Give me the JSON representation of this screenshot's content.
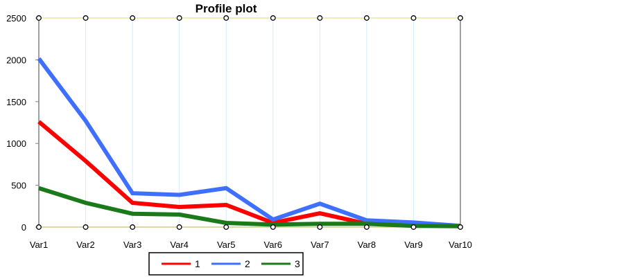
{
  "chart_data": {
    "type": "line",
    "title": "Profile plot",
    "xlabel": "",
    "ylabel": "",
    "categories": [
      "Var1",
      "Var2",
      "Var3",
      "Var4",
      "Var5",
      "Var6",
      "Var7",
      "Var8",
      "Var9",
      "Var10"
    ],
    "ylim": [
      0,
      2500
    ],
    "yticks": [
      0,
      500,
      1000,
      1500,
      2000,
      2500
    ],
    "grid": true,
    "legend_position": "bottom",
    "series": [
      {
        "name": "1",
        "color": "#ff0000",
        "values": [
          1260,
          790,
          290,
          240,
          265,
          50,
          165,
          40,
          30,
          10
        ]
      },
      {
        "name": "2",
        "color": "#3f6fff",
        "values": [
          2015,
          1270,
          405,
          385,
          465,
          90,
          280,
          80,
          55,
          15
        ]
      },
      {
        "name": "3",
        "color": "#1a7a1a",
        "values": [
          465,
          290,
          160,
          150,
          50,
          30,
          40,
          40,
          15,
          10
        ]
      }
    ]
  }
}
